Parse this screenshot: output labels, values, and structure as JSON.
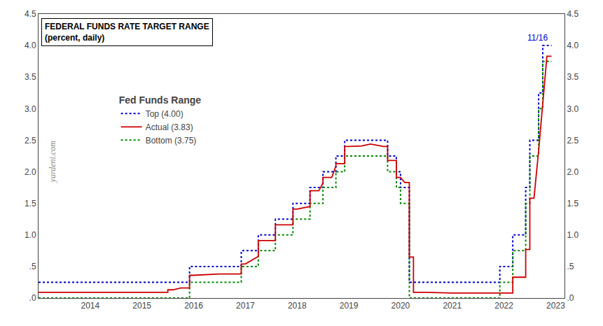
{
  "chart_data": {
    "type": "line",
    "title": "FEDERAL FUNDS RATE TARGET RANGE",
    "subtitle": "(percent, daily)",
    "legend_title": "Fed Funds Range",
    "annotations": [
      {
        "text": "11/16",
        "x": 2022.87,
        "y": 4.02
      },
      {
        "text": "yardeni.com"
      }
    ],
    "xlim": [
      2013.0,
      2023.17
    ],
    "xticks": [
      2014,
      2015,
      2016,
      2017,
      2018,
      2019,
      2020,
      2021,
      2022,
      2023
    ],
    "ylim": [
      0,
      4.5
    ],
    "yticks": [
      {
        "value": 0.0,
        "label": ".0"
      },
      {
        "value": 0.5,
        "label": ".5"
      },
      {
        "value": 1.0,
        "label": "1.0"
      },
      {
        "value": 1.5,
        "label": "1.5"
      },
      {
        "value": 2.0,
        "label": "2.0"
      },
      {
        "value": 2.5,
        "label": "2.5"
      },
      {
        "value": 3.0,
        "label": "3.0"
      },
      {
        "value": 3.5,
        "label": "3.5"
      },
      {
        "value": 4.0,
        "label": "4.0"
      },
      {
        "value": 4.5,
        "label": "4.5"
      }
    ],
    "y2lim": [
      0,
      4.5
    ],
    "y2ticks": [
      {
        "value": 0.0,
        "label": ".0"
      },
      {
        "value": 0.5,
        "label": ".5"
      },
      {
        "value": 1.0,
        "label": "1.0"
      },
      {
        "value": 1.5,
        "label": "1.5"
      },
      {
        "value": 2.0,
        "label": "2.0"
      },
      {
        "value": 2.5,
        "label": "2.5"
      },
      {
        "value": 3.0,
        "label": "3.0"
      },
      {
        "value": 3.5,
        "label": "3.5"
      },
      {
        "value": 4.0,
        "label": "4.0"
      },
      {
        "value": 4.5,
        "label": "4.5"
      }
    ],
    "grid": false,
    "series": [
      {
        "name": "Top (4.00)",
        "color": "#0000CC",
        "line_style": "dotted",
        "x": [
          2013.0,
          2015.92,
          2015.92,
          2016.92,
          2016.92,
          2017.25,
          2017.25,
          2017.58,
          2017.58,
          2017.92,
          2017.92,
          2018.25,
          2018.25,
          2018.5,
          2018.5,
          2018.75,
          2018.75,
          2018.92,
          2018.92,
          2019.75,
          2019.75,
          2019.92,
          2019.92,
          2020.0,
          2020.0,
          2020.17,
          2020.17,
          2021.92,
          2021.92,
          2022.17,
          2022.17,
          2022.42,
          2022.42,
          2022.5,
          2022.5,
          2022.67,
          2022.67,
          2022.75,
          2022.75,
          2022.92
        ],
        "values": [
          0.25,
          0.25,
          0.5,
          0.5,
          0.75,
          0.75,
          1.0,
          1.0,
          1.25,
          1.25,
          1.5,
          1.5,
          1.75,
          1.75,
          2.0,
          2.0,
          2.25,
          2.25,
          2.5,
          2.5,
          2.25,
          2.25,
          2.0,
          2.0,
          1.75,
          1.75,
          0.25,
          0.25,
          0.5,
          0.5,
          1.0,
          1.0,
          1.75,
          1.75,
          2.5,
          2.5,
          3.25,
          3.25,
          4.0,
          4.0
        ]
      },
      {
        "name": "Actual (3.83)",
        "color": "#CC0000",
        "line_style": "solid",
        "x": [
          2013.0,
          2015.5,
          2015.5,
          2015.6,
          2015.75,
          2015.92,
          2015.92,
          2016.0,
          2016.5,
          2016.92,
          2016.92,
          2017.0,
          2017.25,
          2017.25,
          2017.42,
          2017.58,
          2017.58,
          2017.75,
          2017.92,
          2017.92,
          2018.0,
          2018.25,
          2018.25,
          2018.42,
          2018.5,
          2018.5,
          2018.67,
          2018.75,
          2018.75,
          2018.92,
          2018.92,
          2019.0,
          2019.25,
          2019.42,
          2019.67,
          2019.75,
          2019.75,
          2019.83,
          2019.92,
          2019.92,
          2020.0,
          2020.08,
          2020.17,
          2020.17,
          2020.25,
          2020.25,
          2020.5,
          2021.0,
          2021.5,
          2021.92,
          2022.0,
          2022.17,
          2022.17,
          2022.25,
          2022.42,
          2022.42,
          2022.5,
          2022.5,
          2022.58,
          2022.67,
          2022.67,
          2022.75,
          2022.75,
          2022.83,
          2022.83,
          2022.92
        ],
        "values": [
          0.09,
          0.09,
          0.13,
          0.13,
          0.16,
          0.16,
          0.36,
          0.36,
          0.38,
          0.38,
          0.54,
          0.54,
          0.66,
          0.91,
          0.91,
          0.91,
          1.16,
          1.16,
          1.16,
          1.41,
          1.41,
          1.45,
          1.7,
          1.7,
          1.82,
          1.91,
          1.91,
          2.09,
          2.13,
          2.13,
          2.4,
          2.4,
          2.41,
          2.44,
          2.4,
          2.4,
          2.18,
          2.18,
          2.18,
          1.91,
          1.91,
          1.83,
          1.83,
          0.65,
          0.65,
          0.09,
          0.09,
          0.08,
          0.08,
          0.08,
          0.08,
          0.08,
          0.33,
          0.33,
          0.33,
          0.77,
          0.77,
          1.58,
          1.58,
          2.33,
          2.33,
          3.08,
          3.08,
          3.83,
          3.83,
          3.83
        ]
      },
      {
        "name": "Bottom (3.75)",
        "color": "#008800",
        "line_style": "dotted",
        "x": [
          2013.0,
          2015.92,
          2015.92,
          2016.92,
          2016.92,
          2017.25,
          2017.25,
          2017.58,
          2017.58,
          2017.92,
          2017.92,
          2018.25,
          2018.25,
          2018.5,
          2018.5,
          2018.75,
          2018.75,
          2018.92,
          2018.92,
          2019.75,
          2019.75,
          2019.92,
          2019.92,
          2020.0,
          2020.0,
          2020.17,
          2020.17,
          2021.92,
          2021.92,
          2022.17,
          2022.17,
          2022.42,
          2022.42,
          2022.5,
          2022.5,
          2022.67,
          2022.67,
          2022.75,
          2022.75,
          2022.92
        ],
        "values": [
          0.0,
          0.0,
          0.25,
          0.25,
          0.5,
          0.5,
          0.75,
          0.75,
          1.0,
          1.0,
          1.25,
          1.25,
          1.5,
          1.5,
          1.75,
          1.75,
          2.0,
          2.0,
          2.25,
          2.25,
          2.0,
          2.0,
          1.75,
          1.75,
          1.5,
          1.5,
          0.0,
          0.0,
          0.25,
          0.25,
          0.75,
          0.75,
          1.5,
          1.5,
          2.25,
          2.25,
          3.0,
          3.0,
          3.75,
          3.75
        ]
      }
    ]
  }
}
